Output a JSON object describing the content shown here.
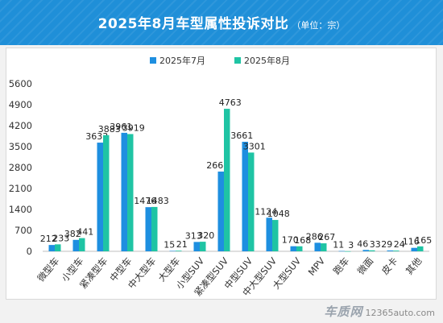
{
  "header": {
    "title": "2025年8月车型属性投诉对比",
    "unit_note": "（单位：宗）"
  },
  "colors": {
    "banner": "#1f8fd8",
    "series_july": "#1e8fe0",
    "series_august": "#1fc4a4"
  },
  "chart_data": {
    "type": "bar",
    "title": "",
    "xlabel": "",
    "ylabel": "",
    "ylim": [
      0,
      5600
    ],
    "yticks": [
      0,
      700,
      1400,
      2100,
      2800,
      3500,
      4200,
      4900,
      5600
    ],
    "grid": false,
    "legend_position": "top-center",
    "categories": [
      "微型车",
      "小型车",
      "紧凑型车",
      "中型车",
      "中大型车",
      "大型车",
      "小型SUV",
      "紧凑型SUV",
      "中型SUV",
      "中大型SUV",
      "大型SUV",
      "MPV",
      "跑车",
      "微面",
      "皮卡",
      "其他"
    ],
    "series": [
      {
        "name": "2025年7月",
        "values": [
          212,
          382,
          3633,
          3961,
          1476,
          15,
          313,
          2665,
          3661,
          1124,
          170,
          286,
          11,
          46,
          29,
          116
        ]
      },
      {
        "name": "2025年8月",
        "values": [
          233,
          441,
          3883,
          3919,
          1483,
          21,
          320,
          4763,
          3301,
          1048,
          168,
          267,
          3,
          33,
          24,
          165
        ]
      }
    ]
  },
  "watermark": {
    "logo": "车质网",
    "url": "12365auto.com"
  }
}
